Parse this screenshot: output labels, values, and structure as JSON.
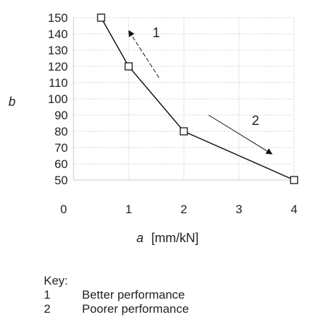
{
  "chart_data": {
    "type": "line",
    "xlabel_italic": "a",
    "xlabel_units": "[mm/kN]",
    "ylabel": "b",
    "x": [
      0.5,
      1,
      2,
      4
    ],
    "y": [
      150,
      120,
      80,
      50
    ],
    "x_ticks": [
      "0",
      "1",
      "2",
      "3",
      "4"
    ],
    "y_ticks": [
      150,
      140,
      130,
      120,
      110,
      100,
      90,
      80,
      70,
      60,
      50
    ],
    "ylim": [
      50,
      150
    ],
    "xlim": [
      0,
      4
    ],
    "grid": true,
    "annotations": [
      {
        "label": "1",
        "from": [
          1.55,
          113
        ],
        "to": [
          1.0,
          142
        ]
      },
      {
        "label": "2",
        "from": [
          2.45,
          90
        ],
        "to": [
          3.6,
          66
        ]
      }
    ]
  },
  "key": {
    "title": "Key:",
    "items": [
      {
        "num": "1",
        "text": "Better performance"
      },
      {
        "num": "2",
        "text": "Poorer performance"
      }
    ]
  }
}
